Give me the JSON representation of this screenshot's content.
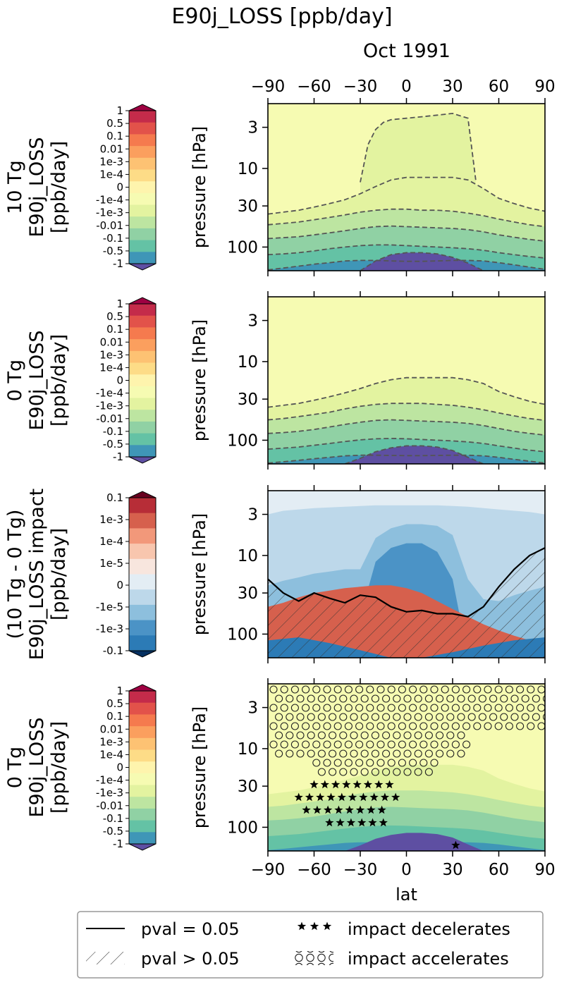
{
  "figure": {
    "title": "E90j_LOSS [ppb/day]",
    "subtitle": "Oct 1991"
  },
  "colors": {
    "seq_levels": [
      "#5E4FA2",
      "#3F96B7",
      "#64C2A5",
      "#90D1A4",
      "#BDE5A1",
      "#E3F3A0",
      "#F6FBB2",
      "#FEF4AD",
      "#FDDC87",
      "#FDC273",
      "#FB9F5E",
      "#F57A4E",
      "#E2524A",
      "#C42B4A",
      "#9E0142"
    ],
    "div_levels": [
      "#053061",
      "#2C7BB6",
      "#4B93C6",
      "#8DBFDD",
      "#BDD8EA",
      "#E3EDF4",
      "#F8E6DE",
      "#F8C6AE",
      "#F2987A",
      "#D6604D",
      "#B72D37",
      "#67001F"
    ]
  },
  "chart_data": [
    {
      "type": "contourf",
      "row_label": [
        "10 Tg",
        "E90j_LOSS",
        "[ppb/day]"
      ],
      "ylabel": "pressure [hPa]",
      "x_ticks": [
        -90,
        -60,
        -30,
        0,
        30,
        60,
        90
      ],
      "x_ticks_position": "top",
      "y_ticks": [
        3,
        10,
        30,
        100
      ],
      "y_scale": "log",
      "ylim": [
        200,
        1.5
      ],
      "xlim": [
        -90,
        90
      ],
      "colorbar": {
        "ticks": [
          "1",
          "0.5",
          "0.1",
          "0.01",
          "1e-3",
          "1e-4",
          "0",
          "-1e-4",
          "-1e-3",
          "-0.01",
          "-0.1",
          "-0.5",
          "-1"
        ],
        "extend": "both"
      },
      "boundaries": [
        {
          "name": "-0.5/-1",
          "x": [
            -90,
            -80,
            -70,
            -60,
            -50,
            -40,
            -30,
            -20,
            -10,
            0,
            10,
            20,
            30,
            40,
            50,
            60,
            70,
            80,
            90
          ],
          "p": [
            195,
            185,
            175,
            165,
            158,
            150,
            148,
            148,
            150,
            152,
            152,
            150,
            148,
            148,
            150,
            158,
            168,
            180,
            192
          ]
        },
        {
          "name": "-1 core",
          "x": [
            -30,
            -20,
            -10,
            0,
            10,
            20,
            30,
            40,
            50
          ],
          "p": [
            200,
            150,
            125,
            118,
            118,
            122,
            135,
            160,
            200
          ]
        },
        {
          "name": "-0.1/-0.5",
          "x": [
            -90,
            -80,
            -70,
            -60,
            -50,
            -40,
            -30,
            -20,
            -10,
            0,
            10,
            20,
            30,
            40,
            50,
            60,
            70,
            80,
            90
          ],
          "p": [
            125,
            122,
            118,
            112,
            105,
            100,
            96,
            94,
            94,
            96,
            98,
            100,
            102,
            105,
            110,
            118,
            125,
            132,
            138
          ]
        },
        {
          "name": "-0.01/-0.1",
          "x": [
            -90,
            -80,
            -70,
            -60,
            -50,
            -40,
            -30,
            -20,
            -10,
            0,
            10,
            20,
            30,
            40,
            50,
            60,
            70,
            80,
            90
          ],
          "p": [
            78,
            76,
            74,
            70,
            66,
            62,
            58,
            55,
            54,
            55,
            56,
            57,
            58,
            60,
            64,
            70,
            75,
            80,
            84
          ]
        },
        {
          "name": "-1e-3/-0.01",
          "x": [
            -90,
            -80,
            -70,
            -60,
            -50,
            -40,
            -30,
            -20,
            -10,
            0,
            10,
            20,
            30,
            40,
            50,
            60,
            70,
            80,
            90
          ],
          "p": [
            52,
            50,
            48,
            45,
            42,
            39,
            36,
            34,
            33,
            33,
            34,
            34,
            35,
            37,
            40,
            44,
            48,
            52,
            55
          ]
        },
        {
          "name": "-1e-4/-1e-3",
          "x": [
            -90,
            -80,
            -70,
            -60,
            -50,
            -40,
            -30,
            -20,
            -10,
            0,
            10,
            20,
            30,
            40,
            50,
            60,
            70,
            80,
            90
          ],
          "p": [
            38,
            36,
            34,
            31,
            28,
            25,
            21,
            17,
            14,
            13,
            13,
            13,
            13,
            14,
            18,
            24,
            28,
            32,
            35
          ]
        },
        {
          "name": "upper lobe",
          "x": [
            -30,
            -25,
            -20,
            -15,
            -10,
            0,
            10,
            20,
            30,
            40,
            45
          ],
          "p": [
            15,
            5,
            3.2,
            2.6,
            2.4,
            2.3,
            2.2,
            2.1,
            2.0,
            2.3,
            14
          ]
        }
      ]
    },
    {
      "type": "contourf",
      "row_label": [
        "0 Tg",
        "E90j_LOSS",
        "[ppb/day]"
      ],
      "ylabel": "pressure [hPa]",
      "x_ticks": [
        -90,
        -60,
        -30,
        0,
        30,
        60,
        90
      ],
      "y_ticks": [
        3,
        10,
        30,
        100
      ],
      "y_scale": "log",
      "ylim": [
        200,
        1.5
      ],
      "xlim": [
        -90,
        90
      ],
      "colorbar": {
        "ticks": [
          "1",
          "0.5",
          "0.1",
          "0.01",
          "1e-3",
          "1e-4",
          "0",
          "-1e-4",
          "-1e-3",
          "-0.01",
          "-0.1",
          "-0.5",
          "-1"
        ],
        "extend": "both"
      },
      "boundaries": [
        {
          "name": "-0.5/-1",
          "x": [
            -90,
            -80,
            -70,
            -60,
            -50,
            -40,
            -30,
            -20,
            -10,
            0,
            10,
            20,
            30,
            40,
            50,
            60,
            70,
            80,
            90
          ],
          "p": [
            195,
            188,
            180,
            172,
            165,
            158,
            155,
            155,
            156,
            157,
            157,
            156,
            155,
            155,
            158,
            165,
            175,
            185,
            195
          ]
        },
        {
          "name": "-1 core",
          "x": [
            -40,
            -30,
            -20,
            -10,
            0,
            10,
            20,
            30,
            40,
            50
          ],
          "p": [
            200,
            170,
            140,
            125,
            118,
            118,
            122,
            135,
            165,
            200
          ]
        },
        {
          "name": "-0.1/-0.5",
          "x": [
            -90,
            -80,
            -70,
            -60,
            -50,
            -40,
            -30,
            -20,
            -10,
            0,
            10,
            20,
            30,
            40,
            50,
            60,
            70,
            80,
            90
          ],
          "p": [
            130,
            126,
            122,
            116,
            110,
            104,
            99,
            96,
            95,
            96,
            98,
            100,
            102,
            105,
            110,
            118,
            126,
            134,
            140
          ]
        },
        {
          "name": "-0.01/-0.1",
          "x": [
            -90,
            -80,
            -70,
            -60,
            -50,
            -40,
            -30,
            -20,
            -10,
            0,
            10,
            20,
            30,
            40,
            50,
            60,
            70,
            80,
            90
          ],
          "p": [
            82,
            80,
            77,
            73,
            68,
            63,
            59,
            56,
            55,
            56,
            57,
            58,
            59,
            61,
            65,
            71,
            77,
            82,
            86
          ]
        },
        {
          "name": "-1e-3/-0.01",
          "x": [
            -90,
            -80,
            -70,
            -60,
            -50,
            -40,
            -30,
            -20,
            -10,
            0,
            10,
            20,
            30,
            40,
            50,
            60,
            70,
            80,
            90
          ],
          "p": [
            55,
            53,
            50,
            47,
            44,
            40,
            37,
            35,
            34,
            34,
            34,
            35,
            36,
            38,
            41,
            45,
            49,
            53,
            56
          ]
        },
        {
          "name": "-1e-4/-1e-3",
          "x": [
            -90,
            -80,
            -70,
            -60,
            -50,
            -40,
            -30,
            -20,
            -10,
            0,
            10,
            20,
            30,
            40,
            50,
            60,
            70,
            80,
            90
          ],
          "p": [
            38,
            36,
            34,
            31,
            28,
            25,
            22,
            19,
            17,
            16,
            16,
            16,
            16,
            17,
            19,
            24,
            28,
            32,
            35
          ]
        }
      ]
    },
    {
      "type": "contourf",
      "row_label": [
        "(10 Tg - 0 Tg)",
        "E90j_LOSS impact",
        "[ppb/day]"
      ],
      "ylabel": "pressure [hPa]",
      "x_ticks": [
        -90,
        -60,
        -30,
        0,
        30,
        60,
        90
      ],
      "y_ticks": [
        3,
        10,
        30,
        100
      ],
      "y_scale": "log",
      "ylim": [
        200,
        1.5
      ],
      "xlim": [
        -90,
        90
      ],
      "colorbar": {
        "ticks": [
          "0.1",
          "1e-3",
          "1e-4",
          "1e-5",
          "0",
          "-1e-5",
          "-1e-3",
          "-0.1"
        ],
        "extend": "both"
      },
      "hatched": "pval > 0.05",
      "boundaries": [
        {
          "name": "positive region top",
          "x": [
            -90,
            -80,
            -70,
            -60,
            -50,
            -40,
            -30,
            -20,
            -10,
            0,
            10,
            20,
            30,
            40,
            50,
            60,
            70,
            80,
            90
          ],
          "p": [
            45,
            40,
            34,
            30,
            28,
            26,
            25,
            24,
            24,
            26,
            30,
            38,
            48,
            60,
            75,
            90,
            105,
            120,
            135
          ]
        },
        {
          "name": "-1e-5 region",
          "x": [
            -90,
            -80,
            -60,
            -40,
            -20,
            0,
            20,
            40,
            60,
            80,
            90
          ],
          "p": [
            3,
            2.7,
            2.5,
            2.4,
            2.3,
            2.3,
            2.3,
            2.4,
            2.6,
            2.8,
            3.0
          ]
        },
        {
          "name": "-1e-3 region",
          "x": [
            -90,
            -80,
            -70,
            -60,
            -50,
            -40,
            -30,
            -20,
            -10,
            0,
            10,
            20,
            30,
            40,
            50,
            60,
            70,
            80,
            90
          ],
          "p": [
            24,
            21,
            19,
            17,
            16,
            15,
            15,
            6,
            4.5,
            4.0,
            4.0,
            4.2,
            5.5,
            20,
            36,
            38,
            32,
            28,
            25
          ]
        },
        {
          "name": "pval contour",
          "x": [
            -90,
            -80,
            -70,
            -60,
            -50,
            -40,
            -30,
            -20,
            -10,
            0,
            10,
            20,
            30,
            40,
            50,
            60,
            70,
            80,
            90
          ],
          "p": [
            20,
            30,
            38,
            30,
            35,
            40,
            32,
            34,
            45,
            52,
            50,
            55,
            55,
            60,
            45,
            25,
            15,
            10,
            8
          ]
        }
      ]
    },
    {
      "type": "contourf",
      "row_label": [
        "0 Tg",
        "E90j_LOSS",
        "[ppb/day]"
      ],
      "ylabel": "pressure [hPa]",
      "xlabel": "lat",
      "x_ticks": [
        -90,
        -60,
        -30,
        0,
        30,
        60,
        90
      ],
      "y_ticks": [
        3,
        10,
        30,
        100
      ],
      "y_scale": "log",
      "ylim": [
        200,
        1.5
      ],
      "xlim": [
        -90,
        90
      ],
      "colorbar": {
        "ticks": [
          "1",
          "0.5",
          "0.1",
          "0.01",
          "1e-3",
          "1e-4",
          "0",
          "-1e-4",
          "-1e-3",
          "-0.01",
          "-0.1",
          "-0.5",
          "-1"
        ],
        "extend": "both"
      },
      "markers": [
        "impact decelerates",
        "impact accelerates"
      ],
      "boundaries": [
        {
          "name": "-0.5/-1",
          "x": [
            -90,
            -80,
            -70,
            -60,
            -50,
            -40,
            -30,
            -20,
            -10,
            0,
            10,
            20,
            30,
            40,
            50,
            60,
            70,
            80,
            90
          ],
          "p": [
            195,
            188,
            180,
            172,
            165,
            158,
            155,
            155,
            156,
            157,
            157,
            156,
            155,
            155,
            158,
            165,
            175,
            185,
            195
          ]
        },
        {
          "name": "-1 core",
          "x": [
            -40,
            -30,
            -20,
            -10,
            0,
            10,
            20,
            30,
            40,
            50
          ],
          "p": [
            200,
            170,
            140,
            125,
            118,
            118,
            122,
            135,
            165,
            200
          ]
        },
        {
          "name": "-0.1/-0.5",
          "x": [
            -90,
            -80,
            -70,
            -60,
            -50,
            -40,
            -30,
            -20,
            -10,
            0,
            10,
            20,
            30,
            40,
            50,
            60,
            70,
            80,
            90
          ],
          "p": [
            130,
            126,
            122,
            116,
            110,
            104,
            99,
            96,
            95,
            96,
            98,
            100,
            102,
            105,
            110,
            118,
            126,
            134,
            140
          ]
        },
        {
          "name": "-0.01/-0.1",
          "x": [
            -90,
            -80,
            -70,
            -60,
            -50,
            -40,
            -30,
            -20,
            -10,
            0,
            10,
            20,
            30,
            40,
            50,
            60,
            70,
            80,
            90
          ],
          "p": [
            82,
            80,
            77,
            73,
            68,
            63,
            59,
            56,
            55,
            56,
            57,
            58,
            59,
            61,
            65,
            71,
            77,
            82,
            86
          ]
        },
        {
          "name": "-1e-3/-0.01",
          "x": [
            -90,
            -80,
            -70,
            -60,
            -50,
            -40,
            -30,
            -20,
            -10,
            0,
            10,
            20,
            30,
            40,
            50,
            60,
            70,
            80,
            90
          ],
          "p": [
            55,
            53,
            50,
            47,
            44,
            40,
            37,
            35,
            34,
            34,
            34,
            35,
            36,
            38,
            41,
            45,
            49,
            53,
            56
          ]
        },
        {
          "name": "-1e-4/-1e-3",
          "x": [
            -90,
            -80,
            -70,
            -60,
            -50,
            -40,
            -30,
            -20,
            -10,
            0,
            10,
            20,
            30,
            40,
            50,
            60,
            70,
            80,
            90
          ],
          "p": [
            38,
            36,
            34,
            31,
            28,
            25,
            22,
            19,
            17,
            16,
            16,
            16,
            16,
            17,
            19,
            24,
            28,
            32,
            35
          ]
        }
      ]
    }
  ],
  "legend": {
    "items": [
      {
        "label": "pval = 0.05",
        "kind": "solid-line"
      },
      {
        "label": "impact decelerates",
        "kind": "stars"
      },
      {
        "label": "pval > 0.05",
        "kind": "hatch"
      },
      {
        "label": "impact accelerates",
        "kind": "open-circles"
      }
    ]
  }
}
